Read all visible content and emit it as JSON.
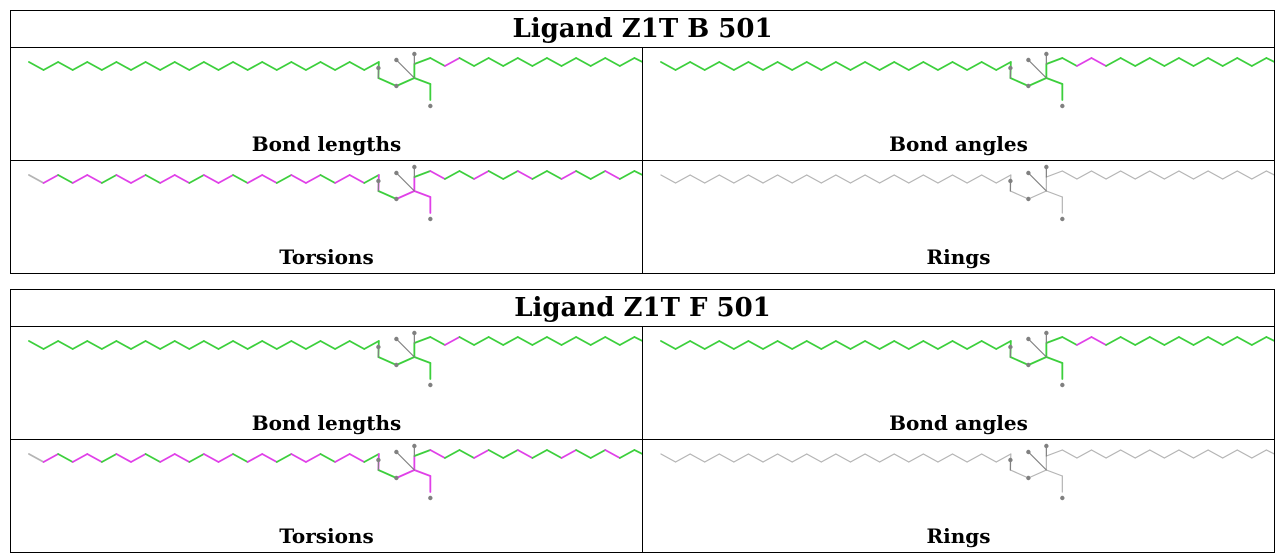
{
  "colors": {
    "ok": "#3ccf3c",
    "outlier": "#e040e8",
    "neutral": "#b4b4b4",
    "atom": "#808080"
  },
  "ligands": [
    {
      "title": "Ligand Z1T B 501",
      "panels": [
        {
          "caption": "Bond lengths",
          "scheme": "lengths"
        },
        {
          "caption": "Bond angles",
          "scheme": "angles"
        },
        {
          "caption": "Torsions",
          "scheme": "torsions"
        },
        {
          "caption": "Rings",
          "scheme": "rings"
        }
      ]
    },
    {
      "title": "Ligand Z1T F 501",
      "panels": [
        {
          "caption": "Bond lengths",
          "scheme": "lengths"
        },
        {
          "caption": "Bond angles",
          "scheme": "angles"
        },
        {
          "caption": "Torsions",
          "scheme": "torsions"
        },
        {
          "caption": "Rings",
          "scheme": "rings"
        }
      ]
    }
  ]
}
